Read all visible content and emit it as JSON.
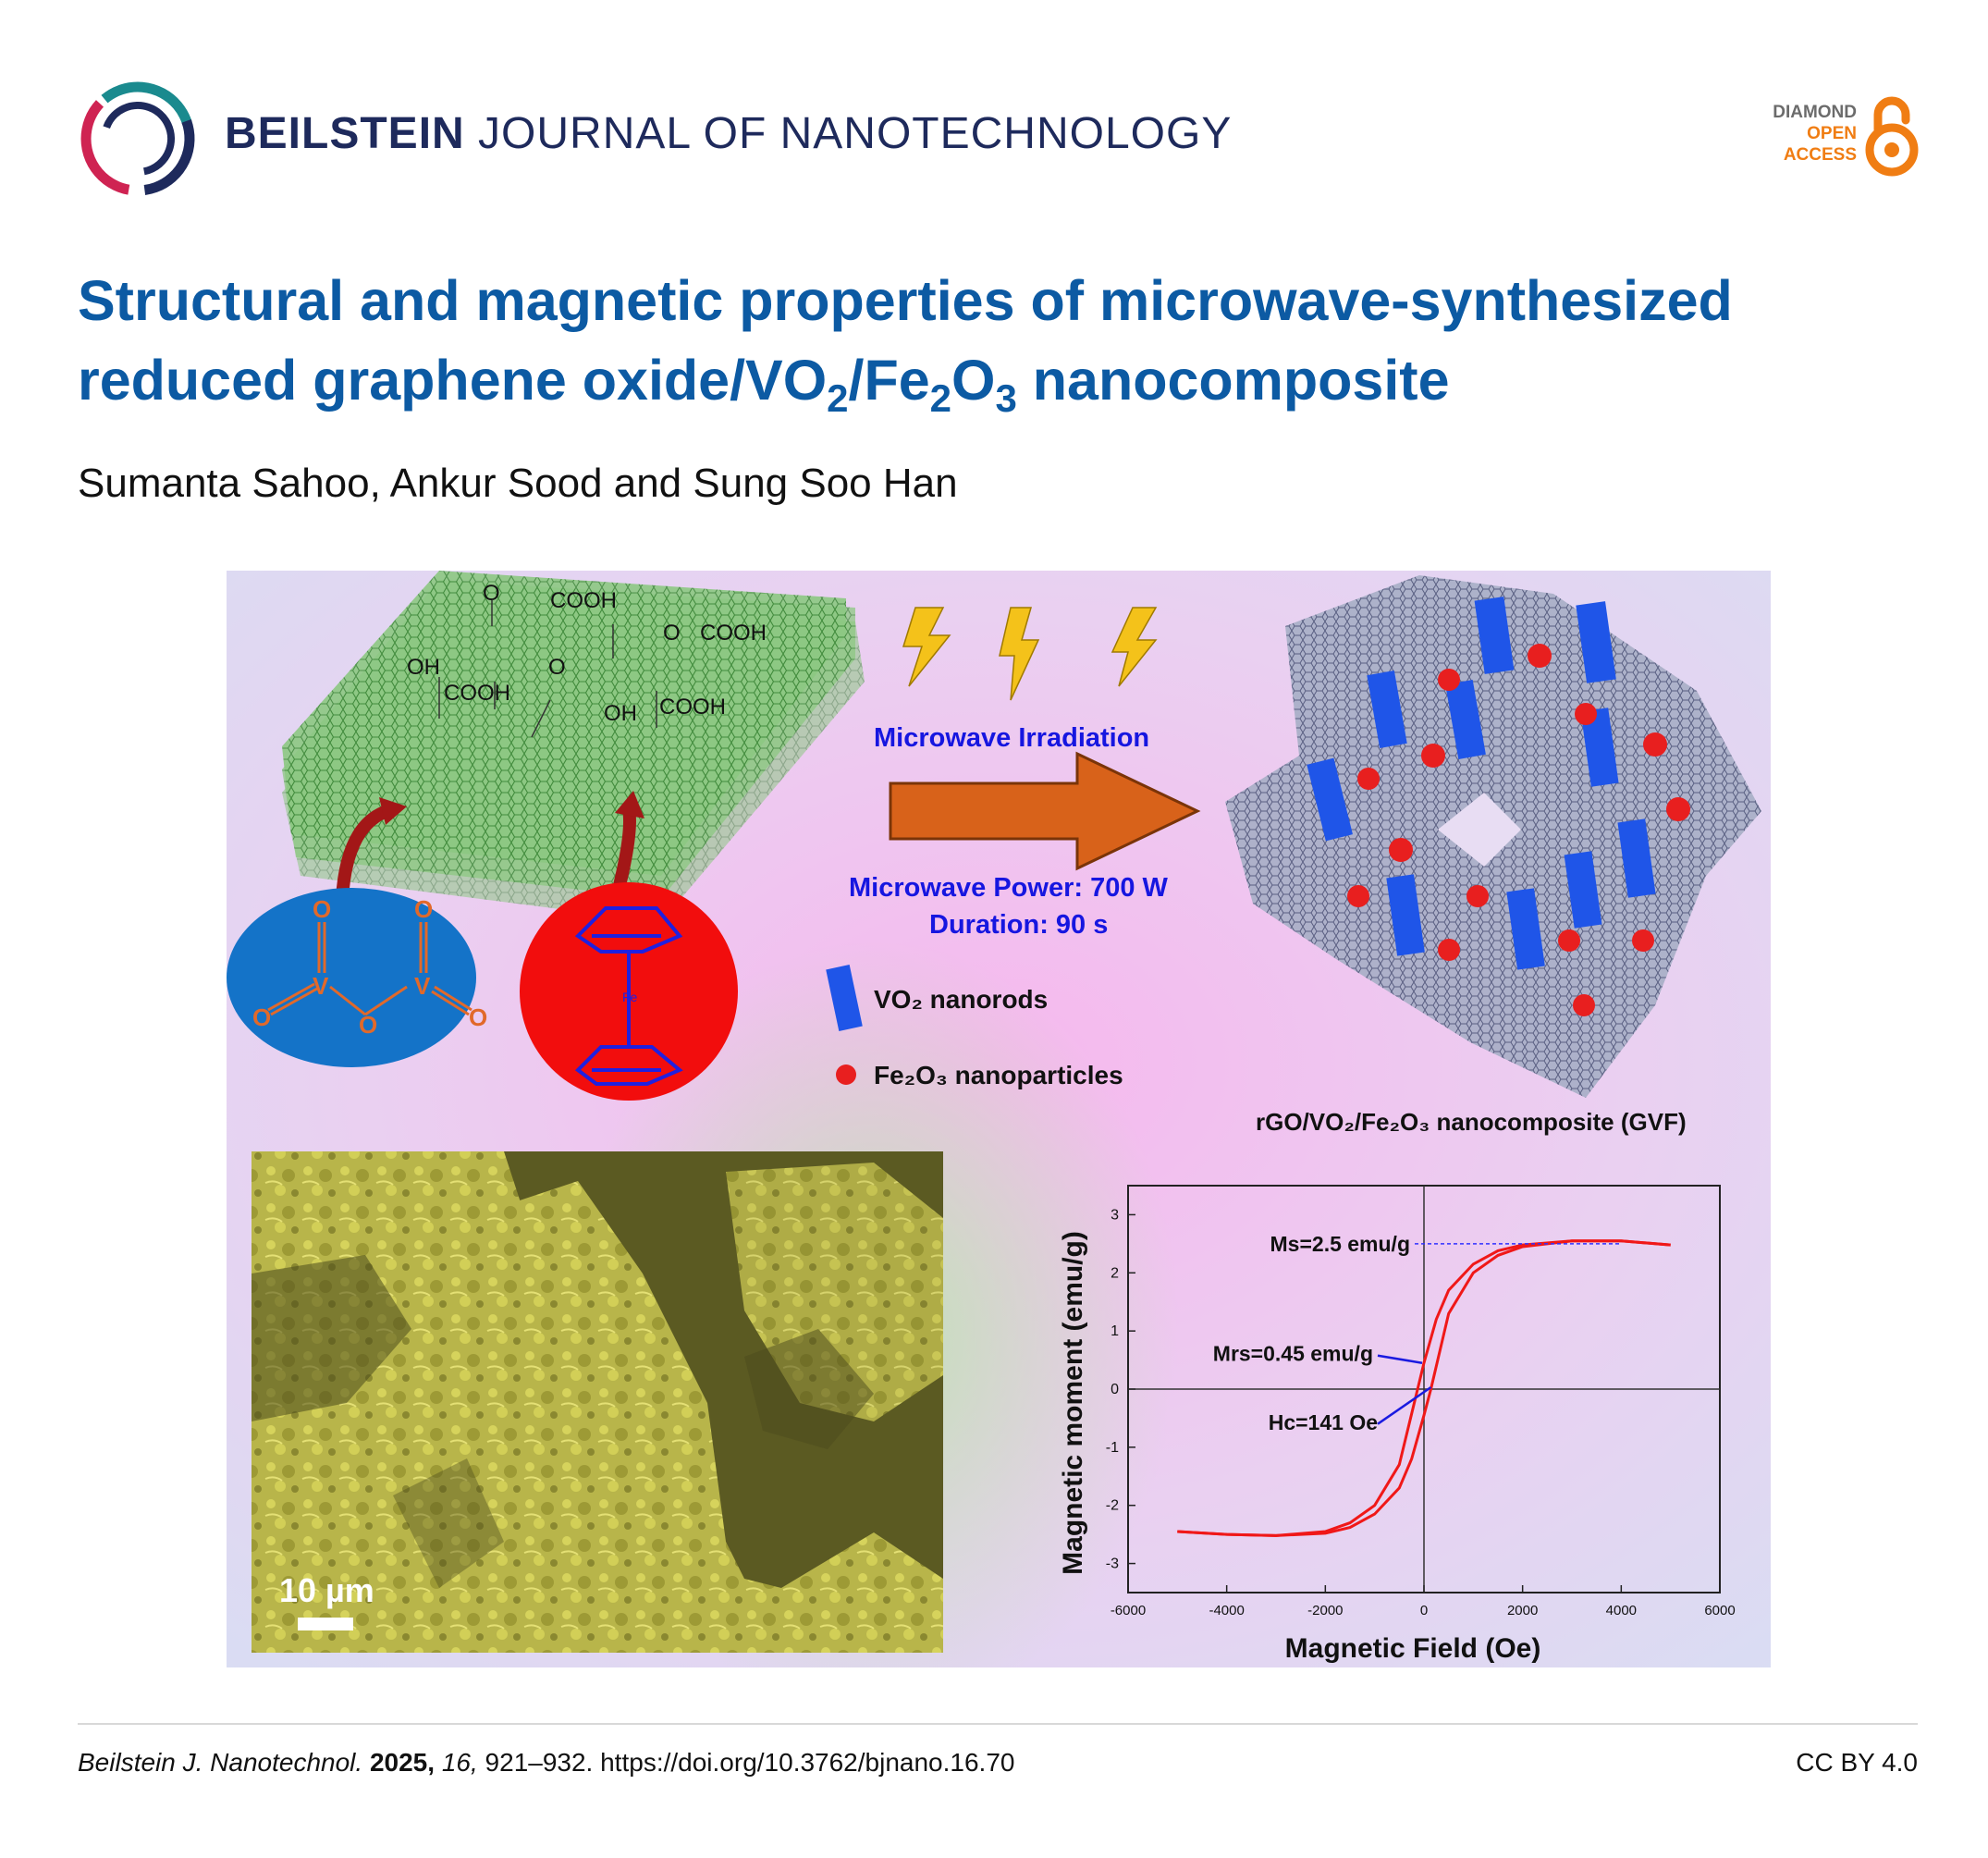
{
  "journal": {
    "name_bold": "BEILSTEIN",
    "name_rest": "JOURNAL OF NANOTECHNOLOGY"
  },
  "open_access": {
    "line1": "DIAMOND",
    "line2": "OPEN",
    "line3": "ACCESS"
  },
  "article": {
    "title_part1": "Structural and magnetic properties of microwave-synthesized reduced graphene oxide/VO",
    "sub1": "2",
    "title_part2": "/Fe",
    "sub2": "2",
    "title_part3": "O",
    "sub3": "3",
    "title_part4": " nanocomposite",
    "authors": "Sumanta Sahoo, Ankur Sood and Sung Soo Han"
  },
  "graphic": {
    "go_labels": [
      "O",
      "COOH",
      "O",
      "COOH",
      "OH",
      "O",
      "COOH",
      "OH",
      "COOH"
    ],
    "microwave_irradiation": "Microwave Irradiation",
    "power": "Microwave Power: 700 W",
    "duration": "Duration: 90 s",
    "legend_vo2": "VO₂ nanorods",
    "legend_fe2o3": "Fe₂O₃ nanoparticles",
    "composite_label": "rGO/VO₂/Fe₂O₃ nanocomposite (GVF)",
    "scale_bar": "10 µm",
    "fe_label": "Fe",
    "colors": {
      "background_pink": "#f0c4ef",
      "sheet_green": "#86c27d",
      "vo2_blue": "#1f55e8",
      "fe2o3_red": "#e81f1f",
      "arrow_orange": "#d8621a",
      "text_blue": "#1616e0"
    }
  },
  "chart_data": {
    "type": "line",
    "title": "",
    "xlabel": "Magnetic Field (Oe)",
    "ylabel": "Magnetic moment (emu/g)",
    "xlim": [
      -6000,
      6000
    ],
    "ylim": [
      -3.5,
      3.5
    ],
    "xticks": [
      -6000,
      -4000,
      -2000,
      0,
      2000,
      4000,
      6000
    ],
    "yticks": [
      -3,
      -2,
      -1,
      0,
      1,
      2,
      3
    ],
    "series": [
      {
        "x": [
          -5000,
          -4000,
          -3000,
          -2000,
          -1500,
          -1000,
          -500,
          0,
          250,
          500,
          1000,
          1500,
          2000,
          3000,
          4000,
          5000
        ],
        "y": [
          -2.45,
          -2.5,
          -2.52,
          -2.45,
          -2.3,
          -2.0,
          -1.3,
          0.45,
          1.2,
          1.7,
          2.15,
          2.38,
          2.48,
          2.55,
          2.55,
          2.48
        ]
      },
      {
        "x": [
          -5000,
          -4000,
          -3000,
          -2000,
          -1500,
          -1000,
          -500,
          -250,
          0,
          141,
          500,
          1000,
          1500,
          2000,
          3000,
          4000,
          5000
        ],
        "y": [
          -2.45,
          -2.5,
          -2.52,
          -2.48,
          -2.38,
          -2.15,
          -1.7,
          -1.2,
          -0.45,
          0,
          1.3,
          2.0,
          2.3,
          2.45,
          2.55,
          2.55,
          2.48
        ]
      }
    ],
    "annotations": [
      "Ms=2.5 emu/g",
      "Mrs=0.45 emu/g",
      "Hc=141 Oe"
    ]
  },
  "footer": {
    "journal_abbrev": "Beilstein J. Nanotechnol.",
    "year": "2025,",
    "volume": "16,",
    "pages_doi": "921–932. https://doi.org/10.3762/bjnano.16.70",
    "license": "CC BY 4.0"
  }
}
